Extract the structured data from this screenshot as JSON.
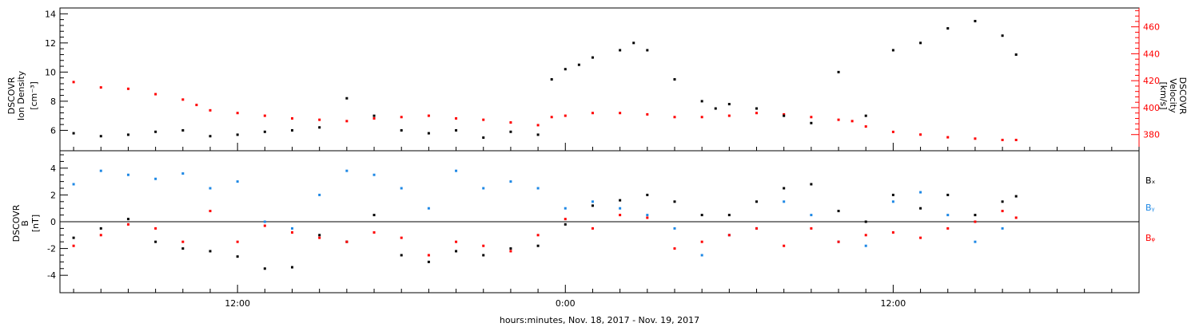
{
  "chart_data": [
    {
      "type": "scatter",
      "panel": "top",
      "ylabel_left": [
        "DSCOVR",
        "Ion Density",
        "[cm⁻³]"
      ],
      "ylabel_right": [
        "DSCOVR",
        "Velocity",
        "[km/s]"
      ],
      "ylim_left": [
        4.6,
        14.4
      ],
      "ylim_right": [
        368,
        474
      ],
      "yticks_left": [
        6,
        8,
        10,
        12,
        14
      ],
      "yticks_right": [
        380,
        400,
        420,
        440,
        460
      ],
      "series": [
        {
          "color": "#000000",
          "axis": "left",
          "x": [
            6,
            7,
            8,
            9,
            10,
            11,
            12,
            13,
            14,
            15,
            16,
            17,
            18,
            19,
            20,
            21,
            22,
            23,
            23.5,
            24,
            24.5,
            25,
            26,
            26.5,
            27,
            28,
            29,
            29.5,
            30,
            31,
            32,
            33,
            34,
            35,
            36,
            37,
            38,
            39,
            40,
            40.5
          ],
          "y": [
            5.8,
            5.6,
            5.7,
            5.9,
            6.0,
            5.6,
            5.7,
            5.9,
            6.0,
            6.2,
            8.2,
            7.0,
            6.0,
            5.8,
            6.0,
            5.5,
            5.9,
            5.7,
            9.5,
            10.2,
            10.5,
            11.0,
            11.5,
            12.0,
            11.5,
            9.5,
            8.0,
            7.5,
            7.8,
            7.5,
            7.0,
            6.5,
            10.0,
            7.0,
            11.5,
            12.0,
            13.0,
            13.5,
            12.5,
            11.2
          ]
        },
        {
          "color": "#ff0000",
          "axis": "right",
          "x": [
            6,
            7,
            8,
            9,
            10,
            10.5,
            11,
            12,
            13,
            14,
            15,
            16,
            17,
            18,
            19,
            20,
            21,
            22,
            23,
            23.5,
            24,
            25,
            26,
            27,
            28,
            29,
            30,
            31,
            32,
            33,
            34,
            34.5,
            35,
            36,
            37,
            38,
            39,
            40,
            40.5
          ],
          "y": [
            419,
            415,
            414,
            410,
            406,
            402,
            398,
            396,
            394,
            392,
            391,
            390,
            392,
            393,
            394,
            392,
            391,
            389,
            387,
            393,
            394,
            396,
            396,
            395,
            393,
            393,
            394,
            396,
            395,
            393,
            391,
            390,
            386,
            382,
            380,
            378,
            377,
            376,
            376
          ]
        }
      ],
      "legend": "none"
    },
    {
      "type": "scatter",
      "panel": "bottom",
      "ylabel_left": [
        "DSCOVR",
        "B",
        "[nT]"
      ],
      "ylim": [
        -5.3,
        5.3
      ],
      "yticks": [
        -4,
        -2,
        0,
        2,
        4
      ],
      "zero_line": true,
      "series": [
        {
          "name": "Bₓ",
          "color": "#000000",
          "x": [
            6,
            7,
            8,
            9,
            10,
            11,
            12,
            13,
            14,
            15,
            16,
            17,
            18,
            19,
            20,
            21,
            22,
            23,
            24,
            25,
            26,
            27,
            28,
            29,
            30,
            31,
            32,
            33,
            34,
            35,
            36,
            37,
            38,
            39,
            40,
            40.5
          ],
          "y": [
            -1.2,
            -0.5,
            0.2,
            -1.5,
            -2.0,
            -2.2,
            -2.6,
            -3.5,
            -3.4,
            -1.0,
            -1.5,
            0.5,
            -2.5,
            -3.0,
            -2.2,
            -2.5,
            -2.0,
            -1.8,
            -0.2,
            1.2,
            1.6,
            2.0,
            1.5,
            0.5,
            0.5,
            1.5,
            2.5,
            2.8,
            0.8,
            0.0,
            2.0,
            1.0,
            2.0,
            0.5,
            1.5,
            1.9
          ]
        },
        {
          "name": "Bᵧ",
          "color": "#1e88e5",
          "x": [
            6,
            7,
            8,
            9,
            10,
            11,
            12,
            13,
            14,
            15,
            16,
            17,
            18,
            19,
            20,
            21,
            22,
            23,
            24,
            25,
            26,
            27,
            28,
            29,
            30,
            31,
            32,
            33,
            34,
            35,
            36,
            37,
            38,
            39,
            40
          ],
          "y": [
            2.8,
            3.8,
            3.5,
            3.2,
            3.6,
            2.5,
            3.0,
            0.0,
            -0.5,
            2.0,
            3.8,
            3.5,
            2.5,
            1.0,
            3.8,
            2.5,
            3.0,
            2.5,
            1.0,
            1.5,
            1.0,
            0.5,
            -0.5,
            -2.5,
            -1.0,
            -0.5,
            1.5,
            0.5,
            -1.5,
            -1.8,
            1.5,
            2.2,
            0.5,
            -1.5,
            -0.5
          ]
        },
        {
          "name": "Bᵩ",
          "color": "#ff0000",
          "x": [
            6,
            7,
            8,
            9,
            10,
            11,
            12,
            13,
            14,
            15,
            16,
            17,
            18,
            19,
            20,
            21,
            22,
            23,
            24,
            25,
            26,
            27,
            28,
            29,
            30,
            31,
            32,
            33,
            34,
            35,
            36,
            37,
            38,
            39,
            40,
            40.5
          ],
          "y": [
            -1.8,
            -1.0,
            -0.2,
            -0.5,
            -1.5,
            0.8,
            -1.5,
            -0.3,
            -0.8,
            -1.2,
            -1.5,
            -0.8,
            -1.2,
            -2.5,
            -1.5,
            -1.8,
            -2.2,
            -1.0,
            0.2,
            -0.5,
            0.5,
            0.3,
            -2.0,
            -1.5,
            -1.0,
            -0.5,
            -1.8,
            -0.5,
            -1.5,
            -1.0,
            -0.8,
            -1.2,
            -0.5,
            0.0,
            0.8,
            0.3
          ]
        }
      ],
      "legend": "right"
    }
  ],
  "x_axis": {
    "xlim": [
      5.5,
      45
    ],
    "tick_labels": [
      {
        "x": 12,
        "label": "12:00"
      },
      {
        "x": 24,
        "label": "0:00"
      },
      {
        "x": 36,
        "label": "12:00"
      }
    ],
    "xlabel": "hours:minutes, Nov. 18, 2017 - Nov. 19, 2017"
  }
}
